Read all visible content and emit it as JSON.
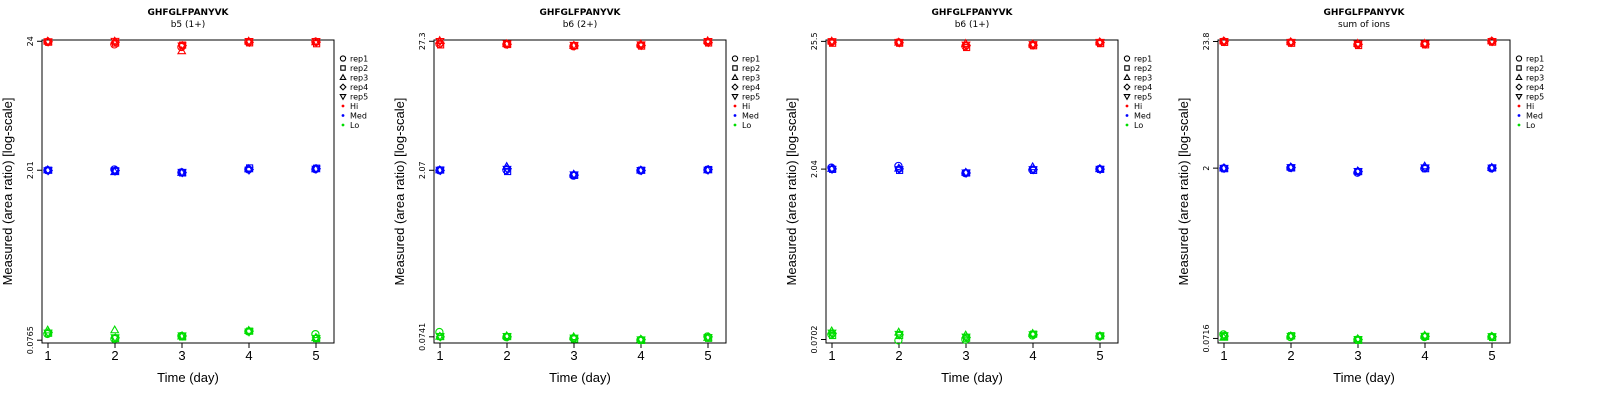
{
  "chart_data": [
    {
      "type": "scatter",
      "title": "GHFGLFPANYVK",
      "subtitle": "b5 (1+)",
      "xlabel": "Time (day)",
      "ylabel": "Measured (area ratio) [log-scale]",
      "y_scale": "log",
      "x_ticks": [
        1,
        2,
        3,
        4,
        5
      ],
      "y_ticks": [
        {
          "value": 0.0765,
          "label": "0.0765"
        },
        {
          "value": 2.01,
          "label": "2.01"
        },
        {
          "value": 24,
          "label": "24"
        }
      ],
      "ylim": [
        0.0725,
        24.6
      ],
      "legend": {
        "placement": "right",
        "entries": [
          "rep1",
          "rep2",
          "rep3",
          "rep4",
          "rep5",
          "Hi",
          "Med",
          "Lo"
        ]
      },
      "series": [
        {
          "name": "Hi",
          "values": {
            "rep1": [
              23.7,
              22.6,
              21.5,
              23.6,
              23.8
            ],
            "rep2": [
              23.6,
              23.2,
              22.3,
              23.3,
              22.9
            ],
            "rep3": [
              24.0,
              24.0,
              19.9,
              24.0,
              23.7
            ],
            "rep4": [
              23.8,
              23.6,
              22.1,
              23.5,
              23.6
            ],
            "rep5": [
              23.9,
              24.1,
              22.0,
              24.0,
              24.0
            ]
          }
        },
        {
          "name": "Med",
          "values": {
            "rep1": [
              2.01,
              2.04,
              1.93,
              2.04,
              2.05
            ],
            "rep2": [
              2.01,
              1.99,
              1.91,
              2.1,
              2.09
            ],
            "rep3": [
              2.02,
              1.95,
              1.92,
              2.06,
              2.06
            ],
            "rep4": [
              2.0,
              2.0,
              1.92,
              2.04,
              2.07
            ],
            "rep5": [
              2.0,
              1.98,
              1.94,
              2.02,
              2.06
            ]
          }
        },
        {
          "name": "Lo",
          "values": {
            "rep1": [
              0.0862,
              0.0785,
              0.083,
              0.0905,
              0.086
            ],
            "rep2": [
              0.0875,
              0.079,
              0.0815,
              0.091,
              0.079
            ],
            "rep3": [
              0.0928,
              0.093,
              0.0825,
              0.092,
              0.08
            ],
            "rep4": [
              0.089,
              0.08,
              0.083,
              0.091,
              0.08
            ],
            "rep5": [
              0.088,
              0.0805,
              0.0835,
              0.09,
              0.0795
            ]
          }
        }
      ]
    },
    {
      "type": "scatter",
      "title": "GHFGLFPANYVK",
      "subtitle": "b6 (2+)",
      "xlabel": "Time (day)",
      "ylabel": "Measured (area ratio) [log-scale]",
      "y_scale": "log",
      "x_ticks": [
        1,
        2,
        3,
        4,
        5
      ],
      "y_ticks": [
        {
          "value": 0.0741,
          "label": "0.0741"
        },
        {
          "value": 2.07,
          "label": "2.07"
        },
        {
          "value": 27.3,
          "label": "27.3"
        }
      ],
      "ylim": [
        0.0655,
        28.0
      ],
      "legend": {
        "placement": "right",
        "entries": [
          "rep1",
          "rep2",
          "rep3",
          "rep4",
          "rep5",
          "Hi",
          "Med",
          "Lo"
        ]
      },
      "series": [
        {
          "name": "Hi",
          "values": {
            "rep1": [
              25.9,
              25.6,
              24.7,
              25.1,
              26.9
            ],
            "rep2": [
              25.4,
              25.6,
              25.0,
              24.8,
              26.4
            ],
            "rep3": [
              27.6,
              25.9,
              25.0,
              25.8,
              27.5
            ],
            "rep4": [
              26.2,
              25.7,
              24.9,
              25.1,
              26.6
            ],
            "rep5": [
              27.3,
              26.1,
              25.3,
              25.5,
              27.3
            ]
          }
        },
        {
          "name": "Med",
          "values": {
            "rep1": [
              2.07,
              2.08,
              1.86,
              2.06,
              2.09
            ],
            "rep2": [
              2.08,
              2.02,
              1.87,
              2.07,
              2.1
            ],
            "rep3": [
              2.08,
              2.23,
              1.91,
              2.07,
              2.08
            ],
            "rep4": [
              2.06,
              2.14,
              1.88,
              2.06,
              2.1
            ],
            "rep5": [
              2.08,
              2.12,
              1.9,
              2.07,
              2.08
            ]
          }
        },
        {
          "name": "Lo",
          "values": {
            "rep1": [
              0.0815,
              0.0735,
              0.072,
              0.0695,
              0.0745
            ],
            "rep2": [
              0.0745,
              0.0745,
              0.071,
              0.069,
              0.072
            ],
            "rep3": [
              0.0745,
              0.0755,
              0.074,
              0.0705,
              0.073
            ],
            "rep4": [
              0.074,
              0.074,
              0.072,
              0.07,
              0.074
            ],
            "rep5": [
              0.075,
              0.075,
              0.0725,
              0.07,
              0.0735
            ]
          }
        }
      ]
    },
    {
      "type": "scatter",
      "title": "GHFGLFPANYVK",
      "subtitle": "b6 (1+)",
      "xlabel": "Time (day)",
      "ylabel": "Measured (area ratio) [log-scale]",
      "y_scale": "log",
      "x_ticks": [
        1,
        2,
        3,
        4,
        5
      ],
      "y_ticks": [
        {
          "value": 0.0702,
          "label": "0.0702"
        },
        {
          "value": 2.04,
          "label": "2.04"
        },
        {
          "value": 25.5,
          "label": "25.5"
        }
      ],
      "ylim": [
        0.0655,
        26.2
      ],
      "legend": {
        "placement": "right",
        "entries": [
          "rep1",
          "rep2",
          "rep3",
          "rep4",
          "rep5",
          "Hi",
          "Med",
          "Lo"
        ]
      },
      "series": [
        {
          "name": "Hi",
          "values": {
            "rep1": [
              25.2,
              25.0,
              23.2,
              23.6,
              24.8
            ],
            "rep2": [
              24.6,
              24.6,
              22.6,
              23.4,
              24.4
            ],
            "rep3": [
              25.6,
              25.0,
              24.4,
              24.1,
              25.2
            ],
            "rep4": [
              25.1,
              24.8,
              23.5,
              23.7,
              24.9
            ],
            "rep5": [
              25.5,
              25.1,
              23.8,
              24.0,
              25.1
            ]
          }
        },
        {
          "name": "Med",
          "values": {
            "rep1": [
              2.1,
              2.17,
              1.88,
              2.01,
              2.04
            ],
            "rep2": [
              2.03,
              1.99,
              1.89,
              1.99,
              2.03
            ],
            "rep3": [
              2.06,
              2.07,
              1.91,
              2.13,
              2.05
            ],
            "rep4": [
              2.05,
              2.05,
              1.89,
              2.02,
              2.04
            ],
            "rep5": [
              2.04,
              2.03,
              1.9,
              2.03,
              2.04
            ]
          }
        },
        {
          "name": "Lo",
          "values": {
            "rep1": [
              0.0775,
              0.069,
              0.07,
              0.076,
              0.0745
            ],
            "rep2": [
              0.076,
              0.076,
              0.072,
              0.078,
              0.0755
            ],
            "rep3": [
              0.083,
              0.081,
              0.0765,
              0.079,
              0.075
            ],
            "rep4": [
              0.079,
              0.077,
              0.073,
              0.077,
              0.075
            ],
            "rep5": [
              0.08,
              0.078,
              0.074,
              0.0775,
              0.0755
            ]
          }
        }
      ]
    },
    {
      "type": "scatter",
      "title": "GHFGLFPANYVK",
      "subtitle": "sum of ions",
      "xlabel": "Time (day)",
      "ylabel": "Measured (area ratio) [log-scale]",
      "y_scale": "log",
      "x_ticks": [
        1,
        2,
        3,
        4,
        5
      ],
      "y_ticks": [
        {
          "value": 0.0716,
          "label": "0.0716"
        },
        {
          "value": 2,
          "label": "2"
        },
        {
          "value": 23.8,
          "label": "23.8"
        }
      ],
      "ylim": [
        0.0655,
        24.5
      ],
      "legend": {
        "placement": "right",
        "entries": [
          "rep1",
          "rep2",
          "rep3",
          "rep4",
          "rep5",
          "Hi",
          "Med",
          "Lo"
        ]
      },
      "series": [
        {
          "name": "Hi",
          "values": {
            "rep1": [
              23.7,
              23.3,
              22.4,
              22.6,
              23.8
            ],
            "rep2": [
              23.4,
              23.0,
              22.0,
              22.3,
              23.5
            ],
            "rep3": [
              24.0,
              23.6,
              22.9,
              22.9,
              24.0
            ],
            "rep4": [
              23.8,
              23.3,
              22.5,
              22.6,
              23.8
            ],
            "rep5": [
              23.9,
              23.5,
              22.7,
              22.8,
              23.9
            ]
          }
        },
        {
          "name": "Med",
          "values": {
            "rep1": [
              1.99,
              2.01,
              1.83,
              1.99,
              1.99
            ],
            "rep2": [
              1.98,
              2.01,
              1.87,
              1.98,
              2.01
            ],
            "rep3": [
              2.0,
              2.04,
              1.89,
              2.08,
              2.02
            ],
            "rep4": [
              2.0,
              2.02,
              1.87,
              2.01,
              2.0
            ],
            "rep5": [
              2.0,
              2.03,
              1.88,
              2.02,
              2.01
            ]
          }
        },
        {
          "name": "Lo",
          "values": {
            "rep1": [
              0.0775,
              0.0735,
              0.07,
              0.0735,
              0.074
            ],
            "rep2": [
              0.0745,
              0.0755,
              0.069,
              0.0745,
              0.073
            ],
            "rep3": [
              0.073,
              0.075,
              0.071,
              0.076,
              0.0745
            ],
            "rep4": [
              0.075,
              0.0745,
              0.07,
              0.0745,
              0.074
            ],
            "rep5": [
              0.076,
              0.075,
              0.0705,
              0.075,
              0.0745
            ]
          }
        }
      ]
    }
  ],
  "colors": {
    "Hi": "#ff0000",
    "Med": "#0000ff",
    "Lo": "#00dd00"
  },
  "legend_symbols": {
    "rep1": "circle",
    "rep2": "square",
    "rep3": "triangle-up",
    "rep4": "diamond",
    "rep5": "triangle-down",
    "Hi": "dot",
    "Med": "dot",
    "Lo": "dot"
  }
}
